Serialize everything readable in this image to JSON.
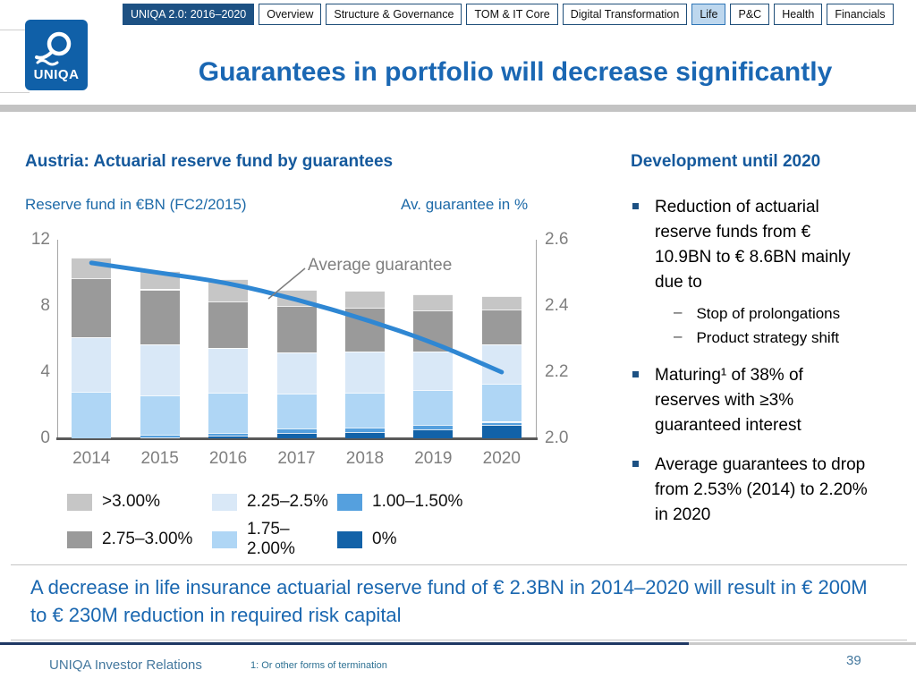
{
  "tabs": [
    {
      "label": "UNIQA 2.0: 2016–2020"
    },
    {
      "label": "Overview"
    },
    {
      "label": "Structure & Governance"
    },
    {
      "label": "TOM & IT Core"
    },
    {
      "label": "Digital Transformation"
    },
    {
      "label": "Life"
    },
    {
      "label": "P&C"
    },
    {
      "label": "Health"
    },
    {
      "label": "Financials"
    }
  ],
  "logo": {
    "text": "UNIQA"
  },
  "title": "Guarantees in portfolio will decrease significantly",
  "chart": {
    "heading": "Austria: Actuarial reserve fund by guarantees",
    "left_axis_label": "Reserve fund in €BN (FC2/2015)",
    "right_axis_label": "Av. guarantee in %",
    "line_label": "Average guarantee"
  },
  "chart_data": {
    "type": "bar",
    "stacked": true,
    "categories": [
      "2014",
      "2015",
      "2016",
      "2017",
      "2018",
      "2019",
      "2020"
    ],
    "series": [
      {
        "name": "0%",
        "color": "#1262A8",
        "values": [
          0.0,
          0.05,
          0.15,
          0.3,
          0.4,
          0.55,
          0.8
        ]
      },
      {
        "name": "1.00–1.50%",
        "color": "#55A0DE",
        "values": [
          0.0,
          0.15,
          0.2,
          0.3,
          0.25,
          0.25,
          0.2
        ]
      },
      {
        "name": "1.75–2.00%",
        "color": "#AFD6F5",
        "values": [
          2.8,
          2.4,
          2.4,
          2.1,
          2.1,
          2.1,
          2.3
        ]
      },
      {
        "name": "2.25–2.5%",
        "color": "#D9E8F7",
        "values": [
          3.3,
          3.1,
          2.7,
          2.5,
          2.5,
          2.35,
          2.4
        ]
      },
      {
        "name": "2.75–3.00%",
        "color": "#9A9A9A",
        "values": [
          3.6,
          3.3,
          2.8,
          2.8,
          2.65,
          2.5,
          2.1
        ]
      },
      {
        "name": ">3.00%",
        "color": "#C6C6C6",
        "values": [
          1.2,
          1.1,
          1.35,
          1.0,
          1.0,
          0.95,
          0.8
        ]
      }
    ],
    "bar_totals": [
      10.9,
      10.1,
      9.6,
      9.0,
      8.9,
      8.7,
      8.6
    ],
    "line_series": {
      "name": "Average guarantee",
      "color": "#2F87D3",
      "axis": "right",
      "values": [
        2.53,
        2.5,
        2.47,
        2.42,
        2.36,
        2.29,
        2.2
      ]
    },
    "left_axis": {
      "label": "Reserve fund in €BN (FC2/2015)",
      "ticks": [
        12,
        8,
        4,
        0
      ],
      "min": 0,
      "max": 12
    },
    "right_axis": {
      "label": "Av. guarantee in %",
      "ticks": [
        2.6,
        2.4,
        2.2,
        2.0
      ],
      "min": 2.0,
      "max": 2.6
    },
    "legend_order": [
      ">3.00%",
      "2.25–2.5%",
      "1.00–1.50%",
      "2.75–3.00%",
      "1.75–2.00%",
      "0%"
    ],
    "grid": false,
    "legend_position": "bottom"
  },
  "panel": {
    "heading": "Development until 2020",
    "sub_bullet_glyph": "–",
    "bullets": [
      {
        "text": "Reduction of actuarial reserve funds from € 10.9BN to € 8.6BN mainly due to",
        "subs": [
          "Stop of prolongations",
          "Product strategy shift"
        ]
      },
      {
        "text": "Maturing¹ of 38% of reserves with ≥3% guaranteed interest"
      },
      {
        "text": "Average guarantees to drop from 2.53% (2014) to 2.20% in 2020"
      }
    ]
  },
  "callout": {
    "text": "A decrease in life insurance actuarial reserve fund of € 2.3BN in 2014–2020 will result in € 200M to € 230M reduction in required risk capital"
  },
  "footer": {
    "left": "UNIQA Investor Relations",
    "footnote": "1: Or other forms of termination",
    "page": "39"
  }
}
